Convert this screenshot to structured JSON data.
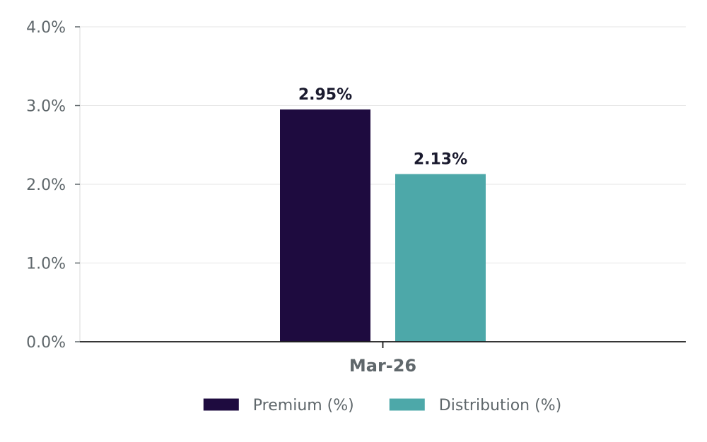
{
  "chart_data": {
    "type": "bar",
    "categories": [
      "Mar-26"
    ],
    "series": [
      {
        "name": "Premium (%)",
        "values": [
          2.95
        ],
        "labels": [
          "2.95%"
        ],
        "color": "#1e0b3f"
      },
      {
        "name": "Distribution (%)",
        "values": [
          2.13
        ],
        "labels": [
          "2.13%"
        ],
        "color": "#4da8a9"
      }
    ],
    "ylim": [
      0,
      4
    ],
    "yticks": [
      0,
      1,
      2,
      3,
      4
    ],
    "ytick_labels": [
      "0.0%",
      "1.0%",
      "2.0%",
      "3.0%",
      "4.0%"
    ],
    "grid": true,
    "legend_position": "bottom-center",
    "title": "",
    "xlabel": "",
    "ylabel": ""
  }
}
